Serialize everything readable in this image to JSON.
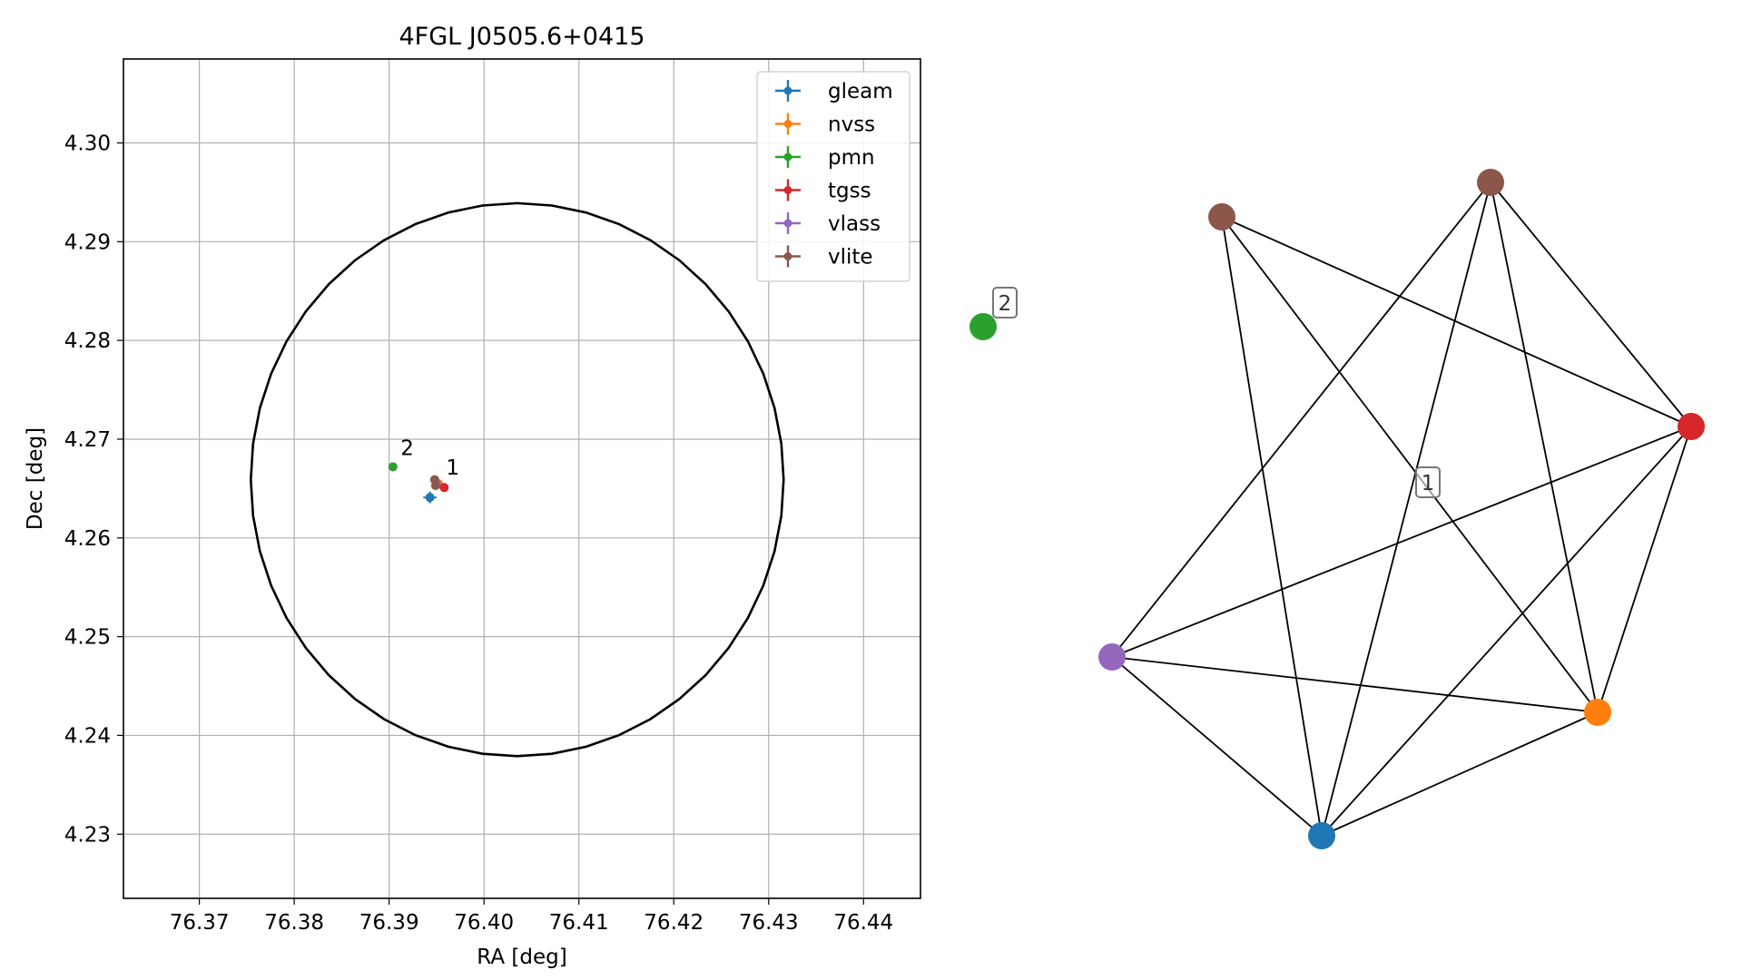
{
  "chart_data": [
    {
      "type": "scatter",
      "title": "4FGL J0505.6+0415",
      "xlabel": "RA [deg]",
      "ylabel": "Dec [deg]",
      "xlim": [
        76.362,
        76.446
      ],
      "ylim": [
        4.2235,
        4.3085
      ],
      "xticks": [
        76.37,
        76.38,
        76.39,
        76.4,
        76.41,
        76.42,
        76.43,
        76.44
      ],
      "xtick_labels": [
        "76.37",
        "76.38",
        "76.39",
        "76.40",
        "76.41",
        "76.42",
        "76.43",
        "76.44"
      ],
      "yticks": [
        4.23,
        4.24,
        4.25,
        4.26,
        4.27,
        4.28,
        4.29,
        4.3
      ],
      "ytick_labels": [
        "4.23",
        "4.24",
        "4.25",
        "4.26",
        "4.27",
        "4.28",
        "4.29",
        "4.30"
      ],
      "grid": true,
      "legend_position": "top-right",
      "series": [
        {
          "name": "gleam",
          "color": "#1f77b4",
          "x": [
            76.3943
          ],
          "y": [
            4.2641
          ],
          "xerr": [
            0.0007
          ],
          "yerr": [
            0.0006
          ]
        },
        {
          "name": "nvss",
          "color": "#ff7f0e",
          "x": [
            76.3952
          ],
          "y": [
            4.2655
          ],
          "xerr": [
            0.0002
          ],
          "yerr": [
            0.0002
          ]
        },
        {
          "name": "pmn",
          "color": "#2ca02c",
          "x": [
            76.3904
          ],
          "y": [
            4.2672
          ],
          "xerr": [
            0.0002
          ],
          "yerr": [
            0.0002
          ]
        },
        {
          "name": "tgss",
          "color": "#d62728",
          "x": [
            76.3958
          ],
          "y": [
            4.2651
          ],
          "xerr": [
            0.0004
          ],
          "yerr": [
            0.0004
          ]
        },
        {
          "name": "vlass",
          "color": "#9467bd",
          "x": [
            76.395
          ],
          "y": [
            4.2655
          ],
          "xerr": [
            0.0001
          ],
          "yerr": [
            0.0001
          ]
        },
        {
          "name": "vlite",
          "color": "#8c564b",
          "x": [
            76.3948,
            76.3949
          ],
          "y": [
            4.2659,
            4.2653
          ],
          "xerr": [
            0.0002,
            0.0002
          ],
          "yerr": [
            0.0003,
            0.0003
          ]
        }
      ],
      "circle": {
        "center_ra": 76.4035,
        "center_dec": 4.2659,
        "radius_deg": 0.028,
        "color": "#000000"
      },
      "annotations": [
        {
          "text": "1",
          "x": 76.396,
          "y": 4.2664
        },
        {
          "text": "2",
          "x": 76.3912,
          "y": 4.2684
        }
      ]
    },
    {
      "type": "network",
      "nodes": [
        {
          "id": "gleam",
          "color": "#1f77b4"
        },
        {
          "id": "nvss",
          "color": "#ff7f0e"
        },
        {
          "id": "pmn",
          "color": "#2ca02c"
        },
        {
          "id": "tgss",
          "color": "#d62728"
        },
        {
          "id": "vlass",
          "color": "#9467bd"
        },
        {
          "id": "vlite_a",
          "color": "#8c564b"
        },
        {
          "id": "vlite_b",
          "color": "#8c564b"
        }
      ],
      "edges": [
        [
          "vlite_a",
          "tgss"
        ],
        [
          "vlite_a",
          "gleam"
        ],
        [
          "vlite_a",
          "nvss"
        ],
        [
          "vlite_b",
          "vlass"
        ],
        [
          "vlite_b",
          "gleam"
        ],
        [
          "vlite_b",
          "nvss"
        ],
        [
          "vlite_b",
          "tgss"
        ],
        [
          "tgss",
          "vlass"
        ],
        [
          "tgss",
          "gleam"
        ],
        [
          "tgss",
          "nvss"
        ],
        [
          "vlass",
          "nvss"
        ],
        [
          "vlass",
          "gleam"
        ],
        [
          "gleam",
          "nvss"
        ]
      ],
      "labels": [
        {
          "text": "1",
          "group": "component-1"
        },
        {
          "text": "2",
          "group": "component-2"
        }
      ]
    }
  ]
}
